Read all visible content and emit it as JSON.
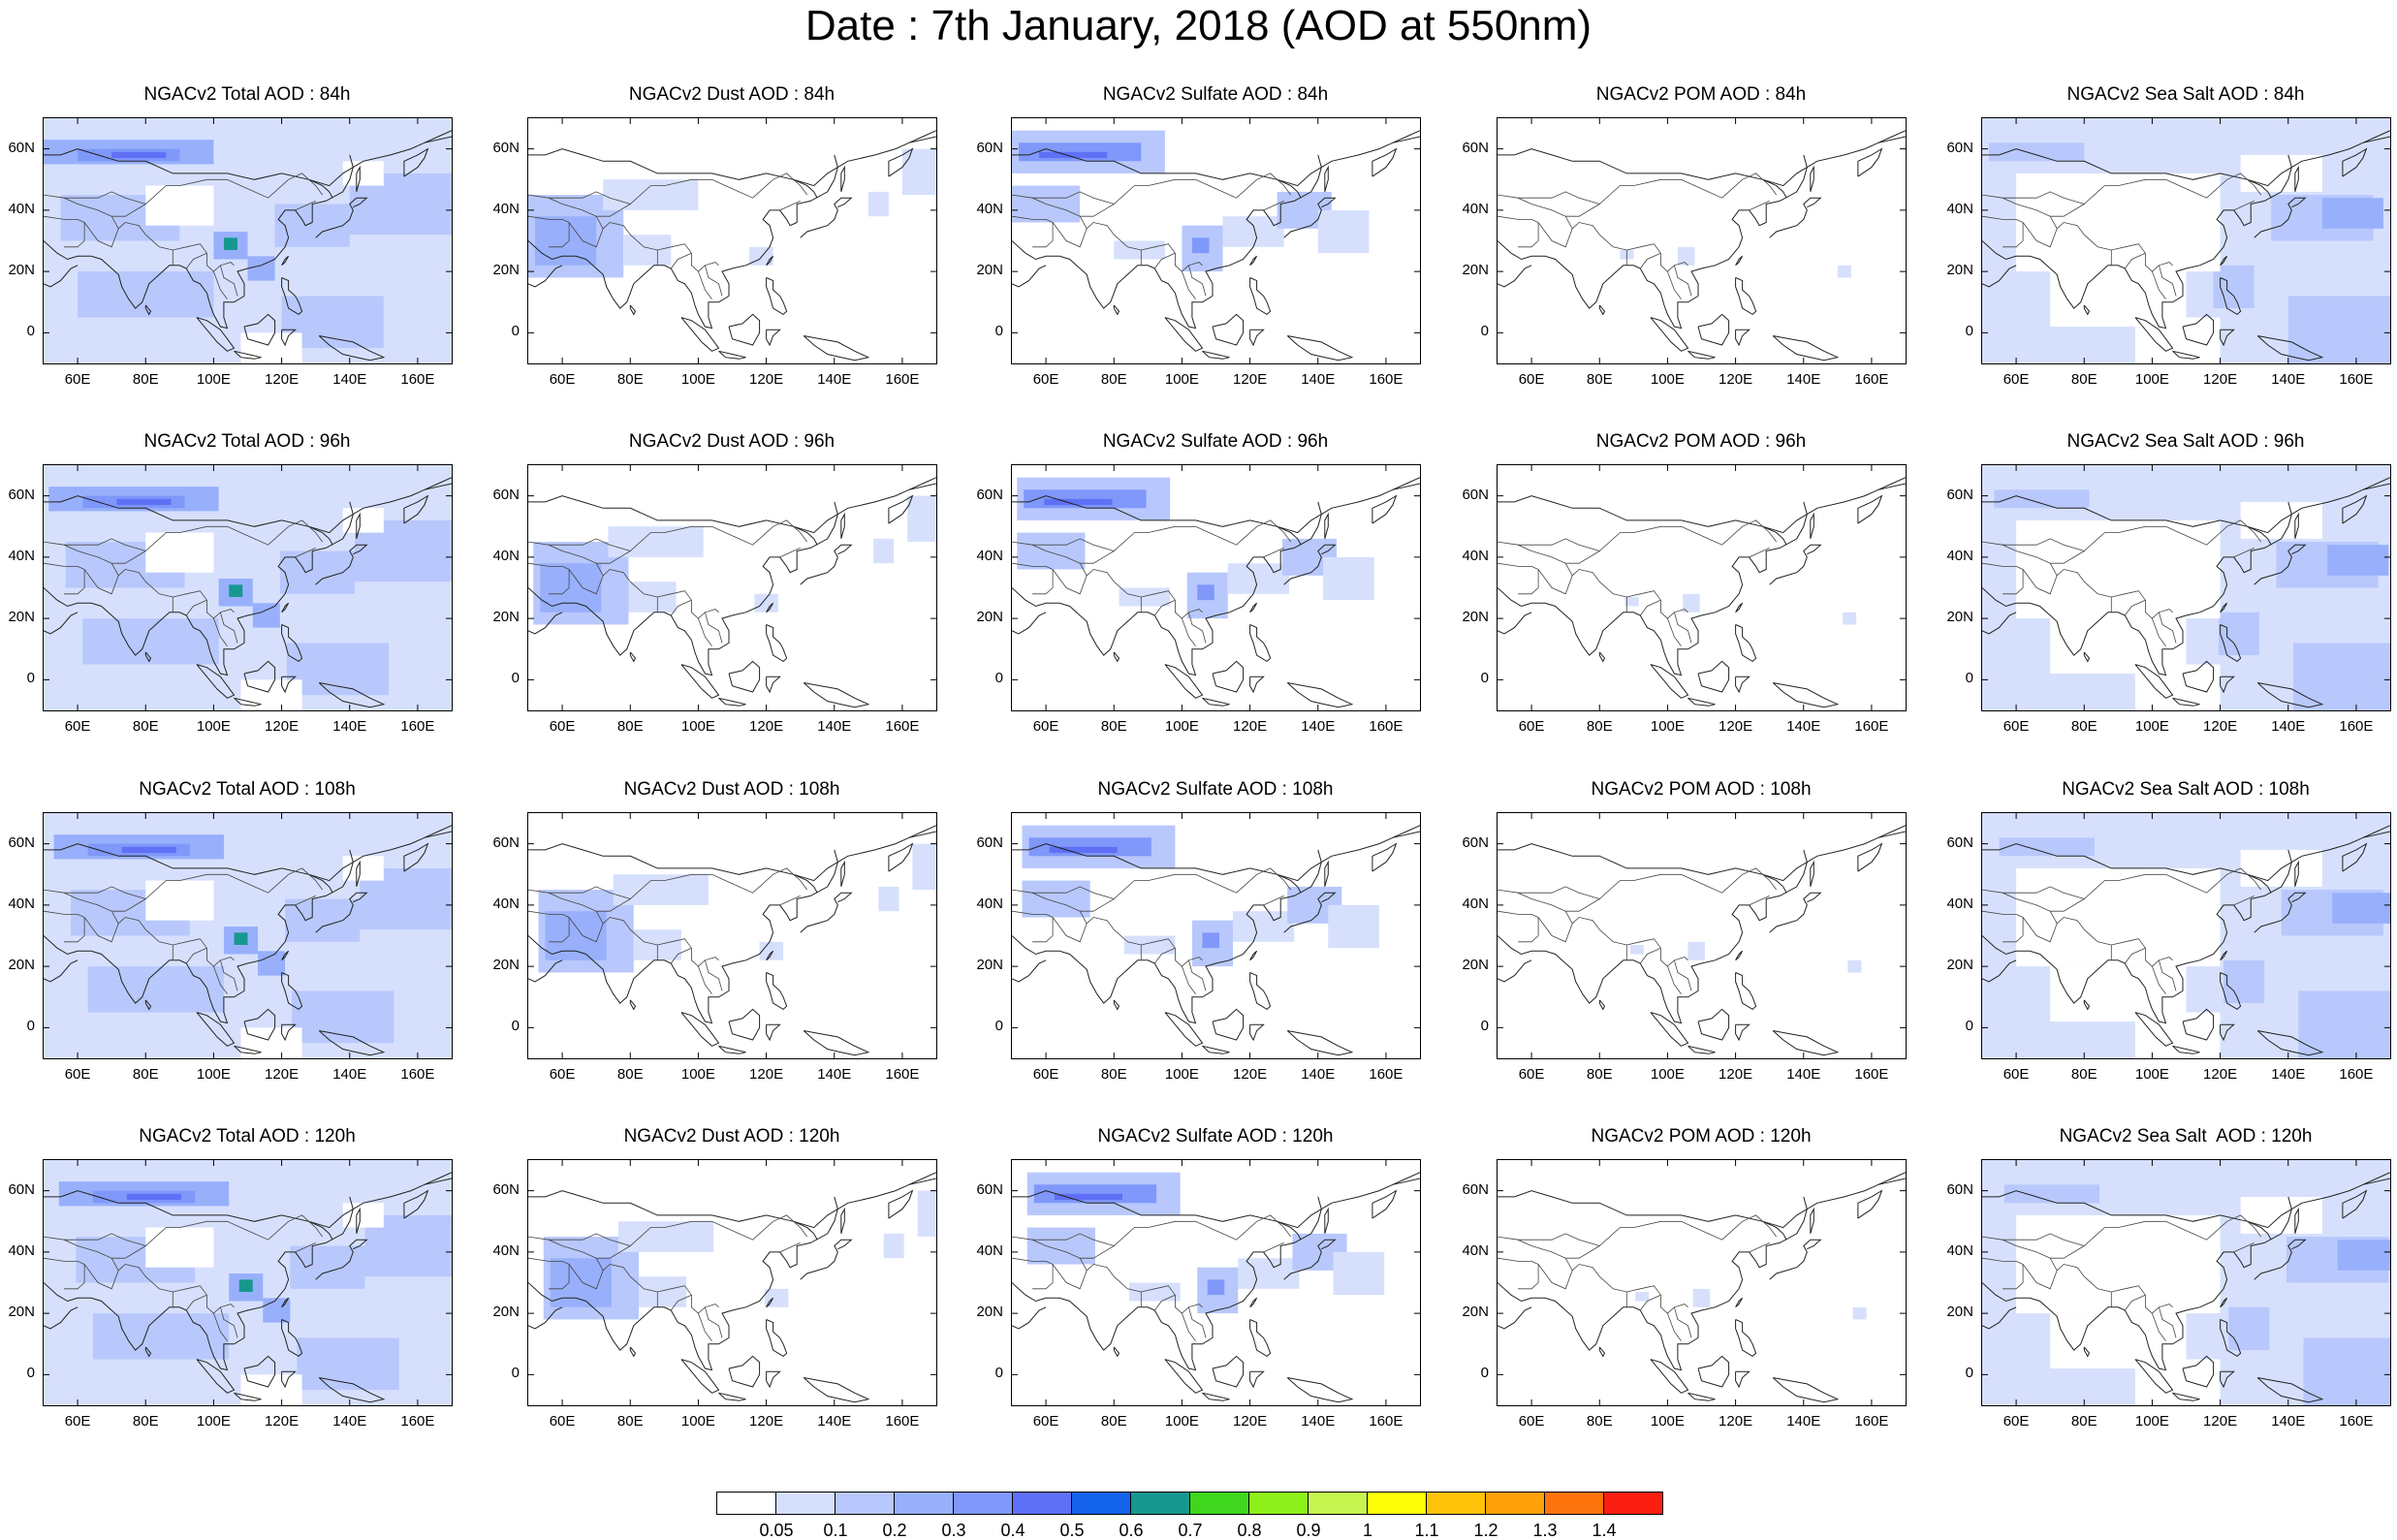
{
  "figure_title": "Date : 7th January, 2018 (AOD at 550nm)",
  "axes": {
    "y_ticks": [
      "60N",
      "40N",
      "20N",
      "0"
    ],
    "x_ticks": [
      "60E",
      "80E",
      "100E",
      "120E",
      "140E",
      "160E"
    ]
  },
  "panels": [
    {
      "title": "NGACv2 Total AOD : 84h",
      "kind": "total"
    },
    {
      "title": "NGACv2 Dust AOD : 84h",
      "kind": "dust"
    },
    {
      "title": "NGACv2 Sulfate AOD : 84h",
      "kind": "sulfate"
    },
    {
      "title": "NGACv2 POM AOD : 84h",
      "kind": "pom"
    },
    {
      "title": "NGACv2 Sea Salt AOD : 84h",
      "kind": "seasalt"
    },
    {
      "title": "NGACv2 Total AOD : 96h",
      "kind": "total"
    },
    {
      "title": "NGACv2 Dust AOD : 96h",
      "kind": "dust"
    },
    {
      "title": "NGACv2 Sulfate AOD : 96h",
      "kind": "sulfate"
    },
    {
      "title": "NGACv2 POM AOD : 96h",
      "kind": "pom"
    },
    {
      "title": "NGACv2 Sea Salt AOD : 96h",
      "kind": "seasalt"
    },
    {
      "title": "NGACv2 Total AOD : 108h",
      "kind": "total"
    },
    {
      "title": "NGACv2 Dust AOD : 108h",
      "kind": "dust"
    },
    {
      "title": "NGACv2 Sulfate AOD : 108h",
      "kind": "sulfate"
    },
    {
      "title": "NGACv2 POM AOD : 108h",
      "kind": "pom"
    },
    {
      "title": "NGACv2 Sea Salt AOD : 108h",
      "kind": "seasalt"
    },
    {
      "title": "NGACv2 Total AOD : 120h",
      "kind": "total"
    },
    {
      "title": "NGACv2 Dust AOD : 120h",
      "kind": "dust"
    },
    {
      "title": "NGACv2 Sulfate AOD : 120h",
      "kind": "sulfate"
    },
    {
      "title": "NGACv2 POM AOD : 120h",
      "kind": "pom"
    },
    {
      "title": "NGACv2 Sea Salt  AOD : 120h",
      "kind": "seasalt"
    }
  ],
  "colorbar": {
    "colors": [
      "#ffffff",
      "#d6e0fd",
      "#b8c8fc",
      "#98b0fb",
      "#7f98fa",
      "#6070f6",
      "#1363ec",
      "#17988f",
      "#3fd61e",
      "#8ef01a",
      "#c6f550",
      "#fefe08",
      "#fec308",
      "#fea10a",
      "#fd740d",
      "#fb1f12"
    ],
    "labels": [
      "0.05",
      "0.1",
      "0.2",
      "0.3",
      "0.4",
      "0.5",
      "0.6",
      "0.7",
      "0.8",
      "0.9",
      "1",
      "1.1",
      "1.2",
      "1.3",
      "1.4"
    ]
  }
}
